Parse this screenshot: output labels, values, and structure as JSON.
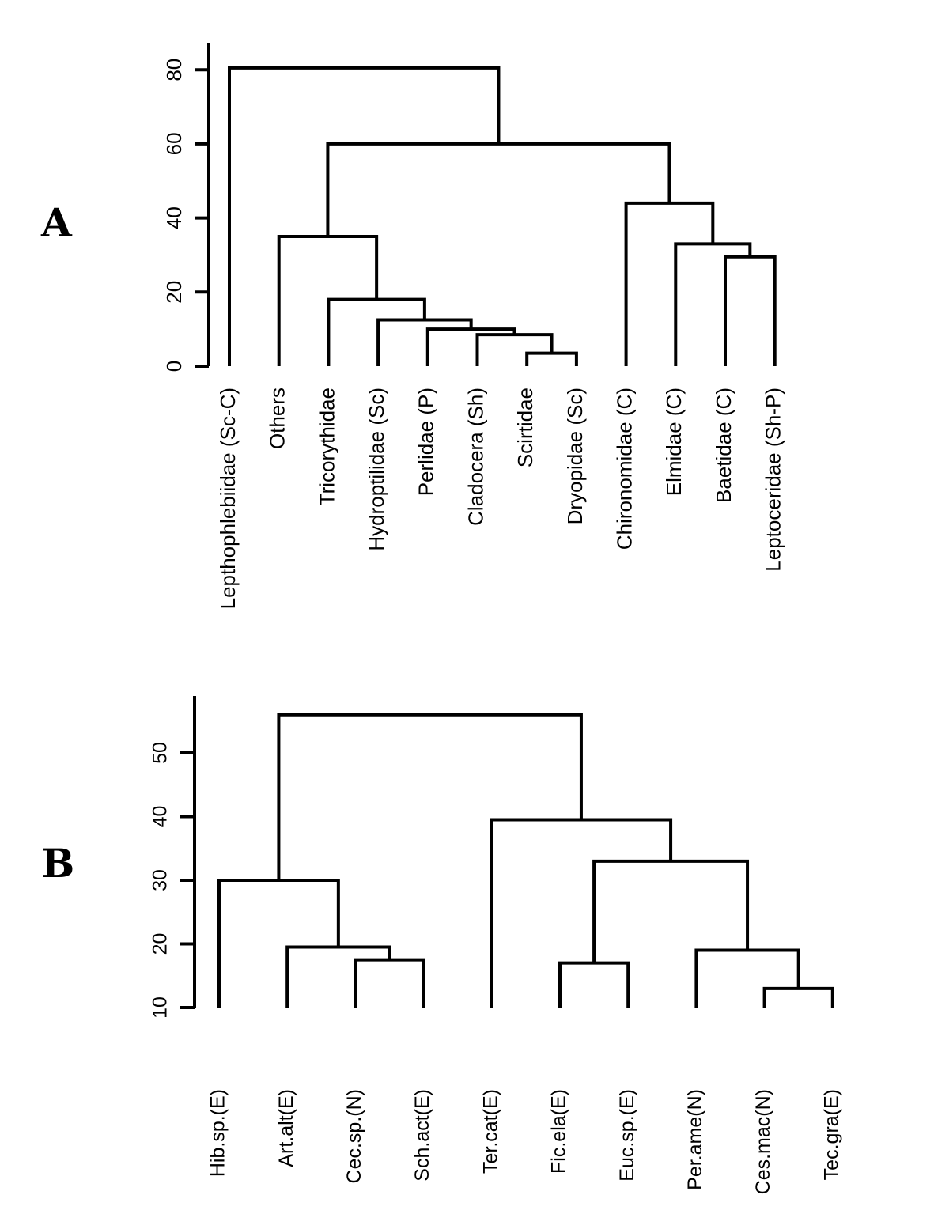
{
  "panels": [
    {
      "id": "A",
      "panel_label": "A",
      "axis": {
        "ticks": [
          0,
          20,
          40,
          60,
          80
        ]
      },
      "leaves": [
        "Lepthophlebiidae (Sc-C)",
        "Others",
        "Tricorythidae",
        "Hydroptilidae (Sc)",
        "Perlidae (P)",
        "Cladocera (Sh)",
        "Scirtidae",
        "Dryopidae (Sc)",
        "Chironomidae (C)",
        "Elmidae (C)",
        "Baetidae (C)",
        "Leptoceridae (Sh-P)"
      ],
      "merges": [
        {
          "a": 6,
          "b": 7,
          "h": 3.5
        },
        {
          "a": 5,
          "b": -1,
          "h": 8.5
        },
        {
          "a": 4,
          "b": -2,
          "h": 10
        },
        {
          "a": 3,
          "b": -3,
          "h": 12.5
        },
        {
          "a": 2,
          "b": -4,
          "h": 18
        },
        {
          "a": 1,
          "b": -5,
          "h": 35
        },
        {
          "a": 10,
          "b": 11,
          "h": 29.5
        },
        {
          "a": 9,
          "b": -7,
          "h": 33
        },
        {
          "a": 8,
          "b": -8,
          "h": 44
        },
        {
          "a": -6,
          "b": -9,
          "h": 60
        },
        {
          "a": 0,
          "b": -10,
          "h": 80.5
        }
      ]
    },
    {
      "id": "B",
      "panel_label": "B",
      "axis": {
        "ticks": [
          10,
          20,
          30,
          40,
          50
        ]
      },
      "leaves": [
        "Hib.sp.(E)",
        "Art.alt(E)",
        "Cec.sp.(N)",
        "Sch.act(E)",
        "Ter.cat(E)",
        "Fic.ela(E)",
        "Euc.sp.(E)",
        "Per.ame(N)",
        "Ces.mac(N)",
        "Tec.gra(E)"
      ],
      "merges": [
        {
          "a": 2,
          "b": 3,
          "h": 17.5
        },
        {
          "a": 1,
          "b": -1,
          "h": 19.5
        },
        {
          "a": 0,
          "b": -2,
          "h": 30
        },
        {
          "a": 8,
          "b": 9,
          "h": 13
        },
        {
          "a": 7,
          "b": -4,
          "h": 19
        },
        {
          "a": 5,
          "b": 6,
          "h": 17
        },
        {
          "a": -6,
          "b": -5,
          "h": 33
        },
        {
          "a": 4,
          "b": -7,
          "h": 39.5
        },
        {
          "a": -3,
          "b": -8,
          "h": 56
        }
      ]
    }
  ]
}
